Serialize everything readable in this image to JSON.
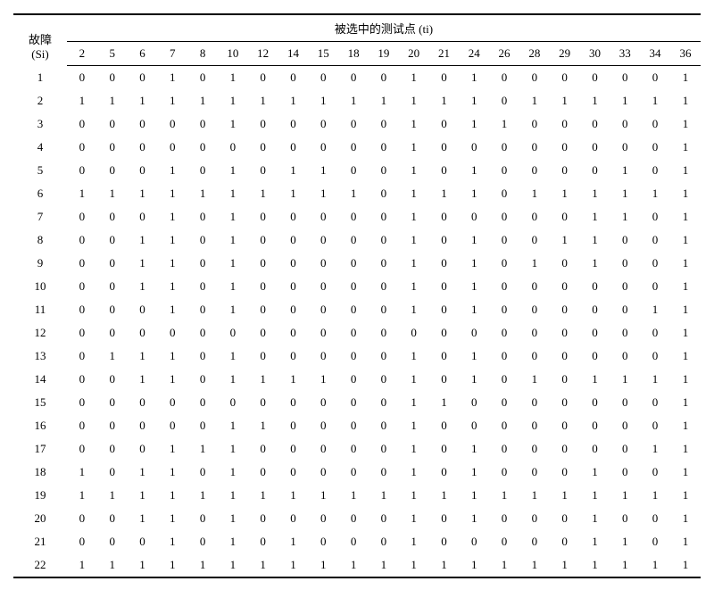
{
  "header": {
    "rowLabelTop": "故障",
    "rowLabelBottom": "(Si)",
    "spanHeader": "被选中的测试点 (ti)",
    "columns": [
      "2",
      "5",
      "6",
      "7",
      "8",
      "10",
      "12",
      "14",
      "15",
      "18",
      "19",
      "20",
      "21",
      "24",
      "26",
      "28",
      "29",
      "30",
      "33",
      "34",
      "36"
    ]
  },
  "rows": [
    {
      "label": "1",
      "cells": [
        "0",
        "0",
        "0",
        "1",
        "0",
        "1",
        "0",
        "0",
        "0",
        "0",
        "0",
        "1",
        "0",
        "1",
        "0",
        "0",
        "0",
        "0",
        "0",
        "0",
        "1"
      ]
    },
    {
      "label": "2",
      "cells": [
        "1",
        "1",
        "1",
        "1",
        "1",
        "1",
        "1",
        "1",
        "1",
        "1",
        "1",
        "1",
        "1",
        "1",
        "0",
        "1",
        "1",
        "1",
        "1",
        "1",
        "1"
      ]
    },
    {
      "label": "3",
      "cells": [
        "0",
        "0",
        "0",
        "0",
        "0",
        "1",
        "0",
        "0",
        "0",
        "0",
        "0",
        "1",
        "0",
        "1",
        "1",
        "0",
        "0",
        "0",
        "0",
        "0",
        "1"
      ]
    },
    {
      "label": "4",
      "cells": [
        "0",
        "0",
        "0",
        "0",
        "0",
        "0",
        "0",
        "0",
        "0",
        "0",
        "0",
        "1",
        "0",
        "0",
        "0",
        "0",
        "0",
        "0",
        "0",
        "0",
        "1"
      ]
    },
    {
      "label": "5",
      "cells": [
        "0",
        "0",
        "0",
        "1",
        "0",
        "1",
        "0",
        "1",
        "1",
        "0",
        "0",
        "1",
        "0",
        "1",
        "0",
        "0",
        "0",
        "0",
        "1",
        "0",
        "1"
      ]
    },
    {
      "label": "6",
      "cells": [
        "1",
        "1",
        "1",
        "1",
        "1",
        "1",
        "1",
        "1",
        "1",
        "1",
        "0",
        "1",
        "1",
        "1",
        "0",
        "1",
        "1",
        "1",
        "1",
        "1",
        "1"
      ]
    },
    {
      "label": "7",
      "cells": [
        "0",
        "0",
        "0",
        "1",
        "0",
        "1",
        "0",
        "0",
        "0",
        "0",
        "0",
        "1",
        "0",
        "0",
        "0",
        "0",
        "0",
        "1",
        "1",
        "0",
        "1"
      ]
    },
    {
      "label": "8",
      "cells": [
        "0",
        "0",
        "1",
        "1",
        "0",
        "1",
        "0",
        "0",
        "0",
        "0",
        "0",
        "1",
        "0",
        "1",
        "0",
        "0",
        "1",
        "1",
        "0",
        "0",
        "1"
      ]
    },
    {
      "label": "9",
      "cells": [
        "0",
        "0",
        "1",
        "1",
        "0",
        "1",
        "0",
        "0",
        "0",
        "0",
        "0",
        "1",
        "0",
        "1",
        "0",
        "1",
        "0",
        "1",
        "0",
        "0",
        "1"
      ]
    },
    {
      "label": "10",
      "cells": [
        "0",
        "0",
        "1",
        "1",
        "0",
        "1",
        "0",
        "0",
        "0",
        "0",
        "0",
        "1",
        "0",
        "1",
        "0",
        "0",
        "0",
        "0",
        "0",
        "0",
        "1"
      ]
    },
    {
      "label": "11",
      "cells": [
        "0",
        "0",
        "0",
        "1",
        "0",
        "1",
        "0",
        "0",
        "0",
        "0",
        "0",
        "1",
        "0",
        "1",
        "0",
        "0",
        "0",
        "0",
        "0",
        "1",
        "1"
      ]
    },
    {
      "label": "12",
      "cells": [
        "0",
        "0",
        "0",
        "0",
        "0",
        "0",
        "0",
        "0",
        "0",
        "0",
        "0",
        "0",
        "0",
        "0",
        "0",
        "0",
        "0",
        "0",
        "0",
        "0",
        "1"
      ]
    },
    {
      "label": "13",
      "cells": [
        "0",
        "1",
        "1",
        "1",
        "0",
        "1",
        "0",
        "0",
        "0",
        "0",
        "0",
        "1",
        "0",
        "1",
        "0",
        "0",
        "0",
        "0",
        "0",
        "0",
        "1"
      ]
    },
    {
      "label": "14",
      "cells": [
        "0",
        "0",
        "1",
        "1",
        "0",
        "1",
        "1",
        "1",
        "1",
        "0",
        "0",
        "1",
        "0",
        "1",
        "0",
        "1",
        "0",
        "1",
        "1",
        "1",
        "1"
      ]
    },
    {
      "label": "15",
      "cells": [
        "0",
        "0",
        "0",
        "0",
        "0",
        "0",
        "0",
        "0",
        "0",
        "0",
        "0",
        "1",
        "1",
        "0",
        "0",
        "0",
        "0",
        "0",
        "0",
        "0",
        "1"
      ]
    },
    {
      "label": "16",
      "cells": [
        "0",
        "0",
        "0",
        "0",
        "0",
        "1",
        "1",
        "0",
        "0",
        "0",
        "0",
        "1",
        "0",
        "0",
        "0",
        "0",
        "0",
        "0",
        "0",
        "0",
        "1"
      ]
    },
    {
      "label": "17",
      "cells": [
        "0",
        "0",
        "0",
        "1",
        "1",
        "1",
        "0",
        "0",
        "0",
        "0",
        "0",
        "1",
        "0",
        "1",
        "0",
        "0",
        "0",
        "0",
        "0",
        "1",
        "1"
      ]
    },
    {
      "label": "18",
      "cells": [
        "1",
        "0",
        "1",
        "1",
        "0",
        "1",
        "0",
        "0",
        "0",
        "0",
        "0",
        "1",
        "0",
        "1",
        "0",
        "0",
        "0",
        "1",
        "0",
        "0",
        "1"
      ]
    },
    {
      "label": "19",
      "cells": [
        "1",
        "1",
        "1",
        "1",
        "1",
        "1",
        "1",
        "1",
        "1",
        "1",
        "1",
        "1",
        "1",
        "1",
        "1",
        "1",
        "1",
        "1",
        "1",
        "1",
        "1"
      ]
    },
    {
      "label": "20",
      "cells": [
        "0",
        "0",
        "1",
        "1",
        "0",
        "1",
        "0",
        "0",
        "0",
        "0",
        "0",
        "1",
        "0",
        "1",
        "0",
        "0",
        "0",
        "1",
        "0",
        "0",
        "1"
      ]
    },
    {
      "label": "21",
      "cells": [
        "0",
        "0",
        "0",
        "1",
        "0",
        "1",
        "0",
        "1",
        "0",
        "0",
        "0",
        "1",
        "0",
        "0",
        "0",
        "0",
        "0",
        "1",
        "1",
        "0",
        "1"
      ]
    },
    {
      "label": "22",
      "cells": [
        "1",
        "1",
        "1",
        "1",
        "1",
        "1",
        "1",
        "1",
        "1",
        "1",
        "1",
        "1",
        "1",
        "1",
        "1",
        "1",
        "1",
        "1",
        "1",
        "1",
        "1"
      ]
    }
  ],
  "style": {
    "font_size": 13,
    "background_color": "#ffffff",
    "text_color": "#000000",
    "border_color": "#000000"
  }
}
